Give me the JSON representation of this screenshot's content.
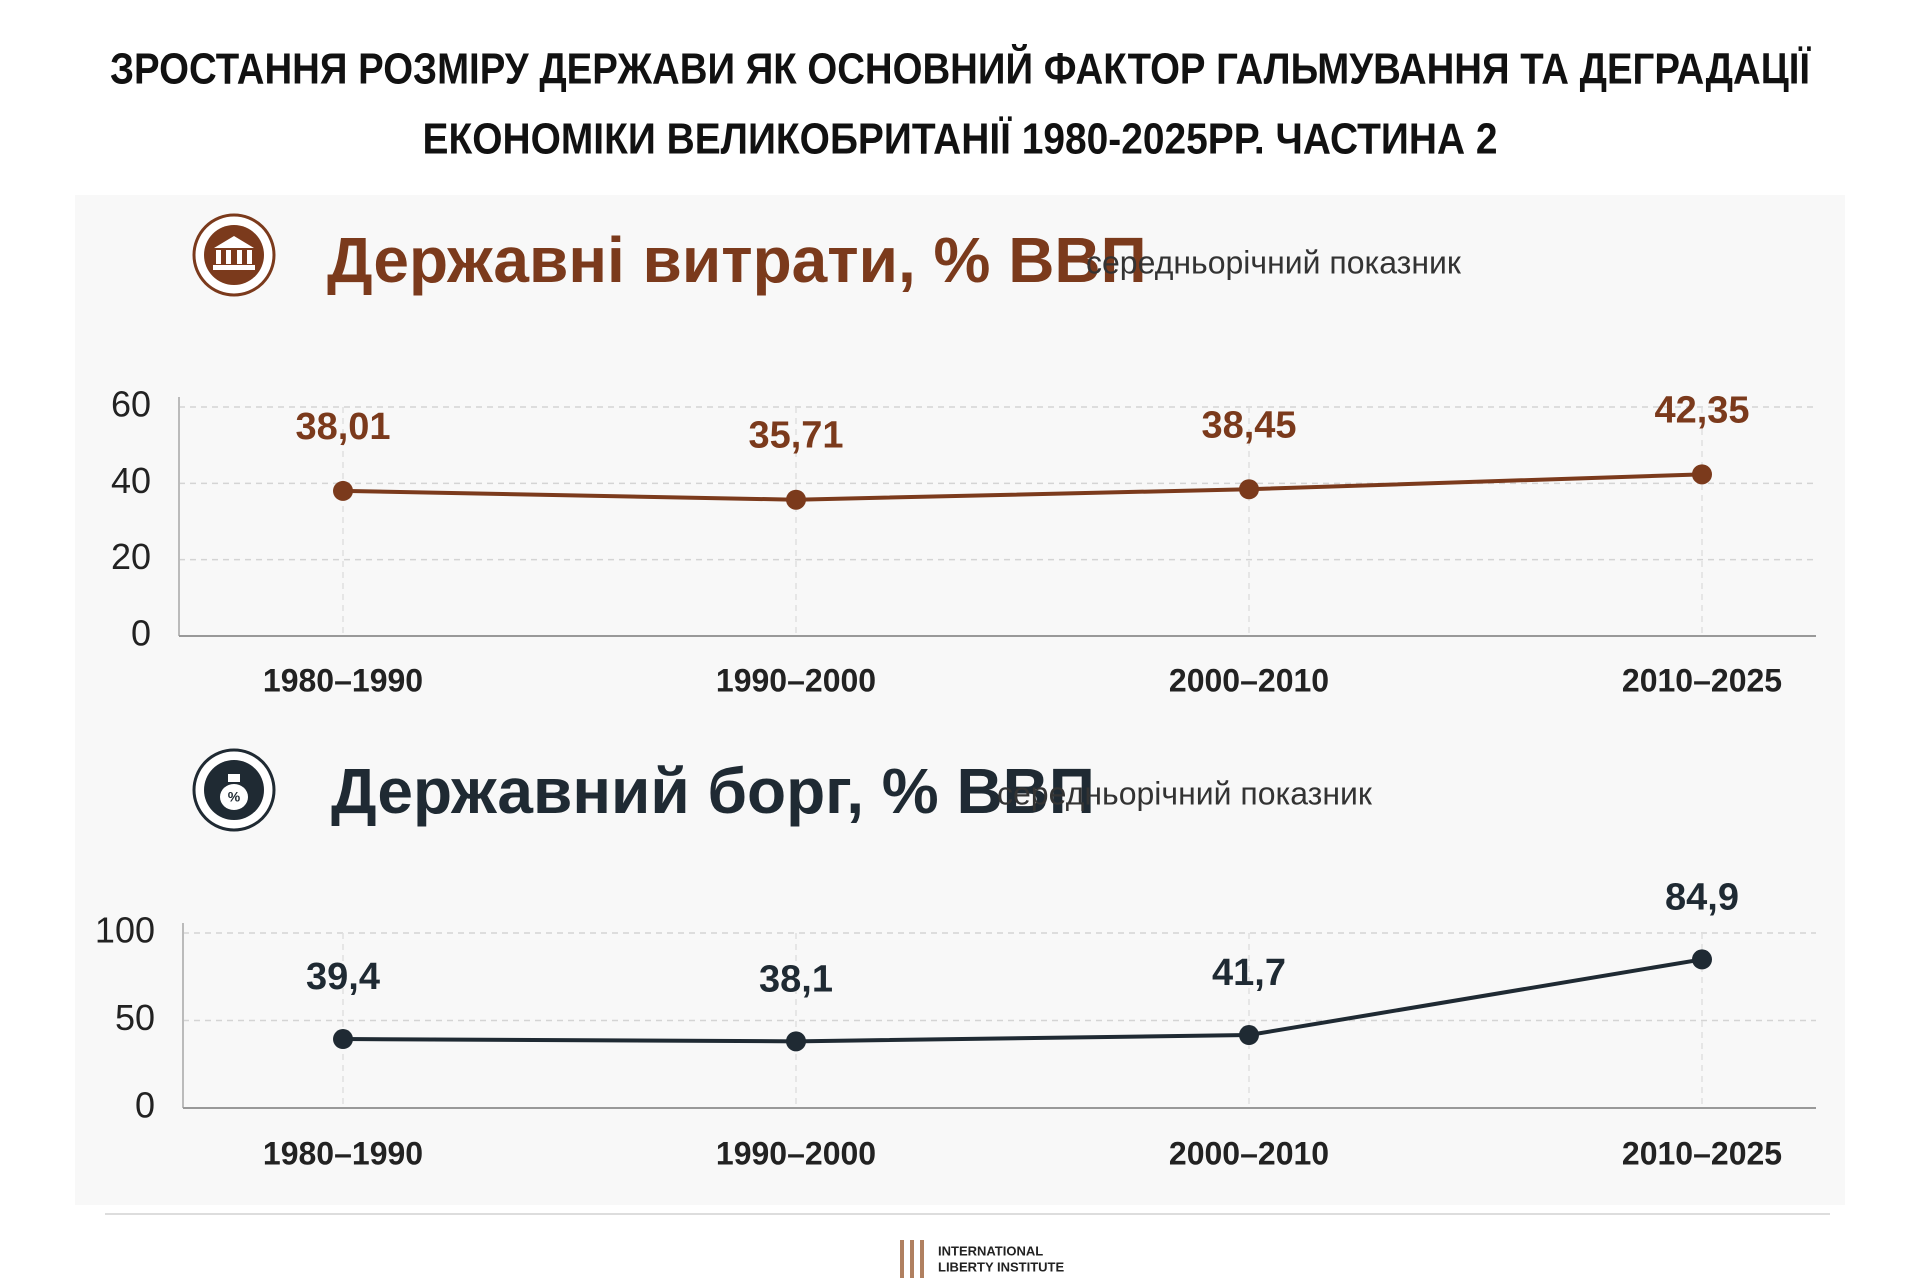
{
  "title": [
    "ЗРОСТАННЯ РОЗМІРУ ДЕРЖАВИ ЯК ОСНОВНИЙ ФАКТОР ГАЛЬМУВАННЯ ТА ДЕГРАДАЦІЇ",
    "ЕКОНОМІКИ ВЕЛИКОБРИТАНІЇ 1980-2025РР. ЧАСТИНА 2"
  ],
  "chart_data": [
    {
      "type": "line",
      "title": "Державні витрати, % ВВП",
      "subtitle": "середньорічний показник",
      "categories": [
        "1980–1990",
        "1990–2000",
        "2000–2010",
        "2010–2025"
      ],
      "values": [
        38.01,
        35.71,
        38.45,
        42.35
      ],
      "value_labels": [
        "38,01",
        "35,71",
        "38,45",
        "42,35"
      ],
      "color": "#7b3a1c",
      "ylim": [
        0,
        60
      ],
      "yticks": [
        0,
        20,
        40,
        60
      ],
      "grid": true
    },
    {
      "type": "line",
      "title": "Державний борг, % ВВП",
      "subtitle": "середньорічний показник",
      "categories": [
        "1980–1990",
        "1990–2000",
        "2000–2010",
        "2010–2025"
      ],
      "values": [
        39.4,
        38.1,
        41.7,
        84.9
      ],
      "value_labels": [
        "39,4",
        "38,1",
        "41,7",
        "84,9"
      ],
      "color": "#1f2a33",
      "ylim": [
        0,
        100
      ],
      "yticks": [
        0,
        50,
        100
      ],
      "grid": true
    }
  ],
  "footer": [
    "INTERNATIONAL",
    "LIBERTY INSTITUTE"
  ]
}
